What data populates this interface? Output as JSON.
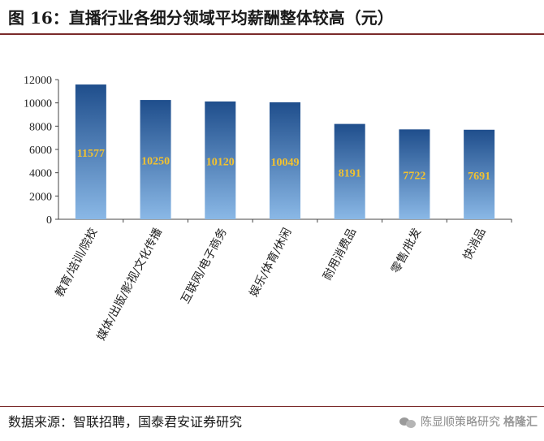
{
  "title": "图 16：直播行业各细分领域平均薪酬整体较高（元）",
  "source": "数据来源：智联招聘，国泰君安证券研究",
  "watermark": {
    "text": "陈显顺策略研究",
    "logo_text": "格隆汇",
    "icon": "wechat-icon"
  },
  "colors": {
    "bar_top": "#1f4e8c",
    "bar_bottom": "#8ab8e6",
    "label": "#f2c230",
    "rule": "#7a2a2a"
  },
  "chart_data": {
    "type": "bar",
    "categories": [
      "教育/培训/院校",
      "媒体/出版/影视/文化传播",
      "互联网/电子商务",
      "娱乐/体育/休闲",
      "耐用消费品",
      "零售/批发",
      "快消品"
    ],
    "values": [
      11577,
      10250,
      10120,
      10049,
      8191,
      7722,
      7691
    ],
    "ylim": [
      0,
      12000
    ],
    "yticks": [
      "0",
      "2000",
      "4000",
      "6000",
      "8000",
      "10000",
      "12000"
    ],
    "grid": false,
    "legend": false,
    "value_labels": [
      "11577",
      "10250",
      "10120",
      "10049",
      "8191",
      "7722",
      "7691"
    ]
  }
}
